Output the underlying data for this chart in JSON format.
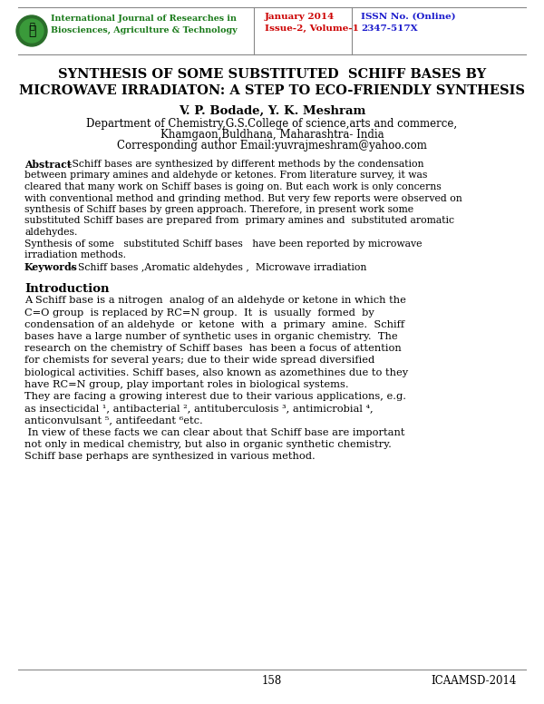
{
  "bg_color": "#ffffff",
  "journal_line1": "International Journal of Researches in",
  "journal_line2": "Biosciences, Agriculture & Technology",
  "date_line1": "January 2014",
  "date_line2": "Issue-2, Volume-1",
  "issn_line1": "ISSN No. (Online)",
  "issn_line2": "2347-517X",
  "title_line1": "SYNTHESIS OF SOME SUBSTITUTED  SCHIFF BASES BY",
  "title_line2": "MICROWAVE IRRADIATON: A STEP TO ECO-FRIENDLY SYNTHESIS",
  "authors": "V. P. Bodade, Y. K. Meshram",
  "affil1": "Department of Chemistry,G.S.College of science,arts and commerce,",
  "affil2": "Khamgaon,Buldhana, Maharashtra- India",
  "affil3": "Corresponding author Email:yuvrajmeshram@yahoo.com",
  "abstract_lines": [
    "–Schiff bases are synthesized by different methods by the condensation",
    "between primary amines and aldehyde or ketones. From literature survey, it was",
    "cleared that many work on Schiff bases is going on. But each work is only concerns",
    "with conventional method and grinding method. But very few reports were observed on",
    "synthesis of Schiff bases by green approach. Therefore, in present work some",
    "substituted Schiff bases are prepared from  primary amines and  substituted aromatic",
    "aldehydes.",
    "Synthesis of some   substituted Schiff bases   have been reported by microwave",
    "irradiation methods."
  ],
  "keywords_body": "– Schiff bases ,Aromatic aldehydes ,  Microwave irradiation",
  "intro_lines": [
    "A Schiff base is a nitrogen  analog of an aldehyde or ketone in which the",
    "C=O group  is replaced by RC=N group.  It  is  usually  formed  by",
    "condensation of an aldehyde  or  ketone  with  a  primary  amine.  Schiff",
    "bases have a large number of synthetic uses in organic chemistry.  The",
    "research on the chemistry of Schiff bases  has been a focus of attention",
    "for chemists for several years; due to their wide spread diversified",
    "biological activities. Schiff bases, also known as azomethines due to they",
    "have RC=N group, play important roles in biological systems.",
    "They are facing a growing interest due to their various applications, e.g.",
    "as insecticidal ¹, antibacterial ², antituberculosis ³, antimicrobial ⁴,",
    "anticonvulsant ⁵, antifeedant ⁶etc.",
    " In view of these facts we can clear about that Schiff base are important",
    "not only in medical chemistry, but also in organic synthetic chemistry.",
    "Schiff base perhaps are synthesized in various method."
  ],
  "footer_page": "158",
  "footer_conf": "ICAAMSD-2014",
  "journal_color": "#1a7a1a",
  "date_color": "#cc0000",
  "issn_color": "#1a1acc",
  "title_color": "#000000",
  "body_color": "#000000",
  "line_color": "#888888"
}
